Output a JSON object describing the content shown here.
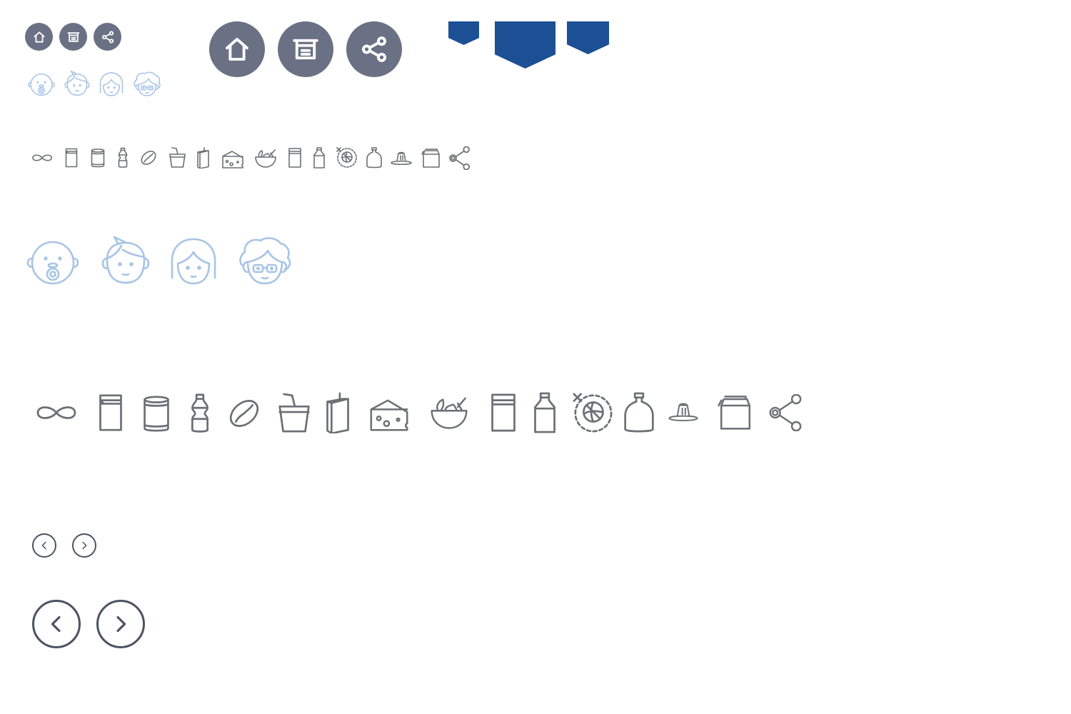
{
  "colors": {
    "button_gray": "#6b7184",
    "face_blue": "#a7c4e6",
    "icon_gray": "#6c6f75",
    "ribbon_blue": "#1c4f93",
    "arrow_dark": "#4b5262"
  },
  "action_buttons": [
    "home-icon",
    "archive-icon",
    "share-icon"
  ],
  "ribbons": [
    "small",
    "large",
    "medium"
  ],
  "faces": [
    "baby-face-icon",
    "boy-face-icon",
    "woman-face-icon",
    "grandma-face-icon"
  ],
  "food_icons": [
    "infinity-icon",
    "milk-carton-icon",
    "can-icon",
    "yogurt-drink-bottle-icon",
    "coffee-bean-icon",
    "drink-cup-with-straw-icon",
    "juice-box-icon",
    "cheese-icon",
    "salad-bowl-icon",
    "cream-carton-icon",
    "milk-bottle-icon",
    "no-ball-icon",
    "squeeze-bottle-icon",
    "pudding-icon",
    "lunch-box-icon",
    "share-icon"
  ],
  "pagination": [
    "previous-arrow-icon",
    "next-arrow-icon"
  ]
}
